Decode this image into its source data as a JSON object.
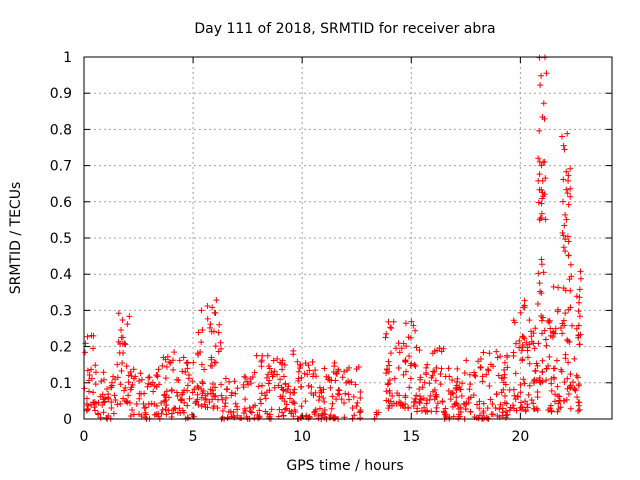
{
  "chart_data": {
    "type": "scatter",
    "title": "Day 111 of 2018, SRMTID for receiver abra",
    "xlabel": "GPS time / hours",
    "ylabel": "SRMTID / TECUs",
    "xlim": [
      0,
      24.2
    ],
    "ylim": [
      0,
      1
    ],
    "xticks": [
      0,
      5,
      10,
      15,
      20
    ],
    "xtick_labels": [
      "0",
      "5",
      "10",
      "15",
      "20"
    ],
    "yticks": [
      0,
      0.1,
      0.2,
      0.3,
      0.4,
      0.5,
      0.6,
      0.7,
      0.8,
      0.9,
      1
    ],
    "ytick_labels": [
      "0",
      "0.1",
      "0.2",
      "0.3",
      "0.4",
      "0.5",
      "0.6",
      "0.7",
      "0.8",
      "0.9",
      "1"
    ],
    "grid": true,
    "marker": "plus",
    "series": [
      {
        "name": "SRMTID",
        "color": "#ff0000",
        "segments": [
          {
            "x_start": 0.0,
            "x_end": 0.5,
            "ranges": [
              [
                0.02,
                0.26
              ]
            ]
          },
          {
            "x_start": 0.5,
            "x_end": 1.5,
            "ranges": [
              [
                0.0,
                0.16
              ]
            ]
          },
          {
            "x_start": 1.5,
            "x_end": 2.1,
            "ranges": [
              [
                0.04,
                0.3
              ]
            ]
          },
          {
            "x_start": 2.1,
            "x_end": 3.5,
            "ranges": [
              [
                0.0,
                0.14
              ]
            ]
          },
          {
            "x_start": 3.5,
            "x_end": 4.2,
            "ranges": [
              [
                0.0,
                0.2
              ]
            ]
          },
          {
            "x_start": 4.2,
            "x_end": 5.2,
            "ranges": [
              [
                0.0,
                0.18
              ]
            ]
          },
          {
            "x_start": 5.2,
            "x_end": 6.3,
            "ranges": [
              [
                0.03,
                0.33
              ]
            ]
          },
          {
            "x_start": 6.3,
            "x_end": 7.6,
            "ranges": [
              [
                0.0,
                0.12
              ]
            ]
          },
          {
            "x_start": 7.6,
            "x_end": 8.6,
            "ranges": [
              [
                0.0,
                0.18
              ]
            ]
          },
          {
            "x_start": 8.6,
            "x_end": 10.2,
            "ranges": [
              [
                0.0,
                0.2
              ]
            ]
          },
          {
            "x_start": 10.2,
            "x_end": 12.7,
            "ranges": [
              [
                0.0,
                0.16
              ]
            ]
          },
          {
            "x_start": 13.3,
            "x_end": 13.5,
            "ranges": [
              [
                0.0,
                0.02
              ]
            ]
          },
          {
            "x_start": 13.8,
            "x_end": 15.2,
            "ranges": [
              [
                0.03,
                0.27
              ]
            ]
          },
          {
            "x_start": 15.2,
            "x_end": 16.5,
            "ranges": [
              [
                0.02,
                0.22
              ]
            ]
          },
          {
            "x_start": 16.5,
            "x_end": 18.0,
            "ranges": [
              [
                0.0,
                0.18
              ]
            ]
          },
          {
            "x_start": 18.0,
            "x_end": 19.5,
            "ranges": [
              [
                0.0,
                0.2
              ]
            ]
          },
          {
            "x_start": 19.5,
            "x_end": 20.8,
            "ranges": [
              [
                0.02,
                0.33
              ]
            ]
          },
          {
            "x_start": 20.8,
            "x_end": 21.2,
            "ranges": [
              [
                0.1,
                0.45
              ],
              [
                0.55,
                1.0
              ]
            ]
          },
          {
            "x_start": 21.2,
            "x_end": 21.9,
            "ranges": [
              [
                0.02,
                0.38
              ]
            ]
          },
          {
            "x_start": 21.9,
            "x_end": 22.3,
            "ranges": [
              [
                0.05,
                0.4
              ],
              [
                0.45,
                0.82
              ]
            ]
          },
          {
            "x_start": 22.3,
            "x_end": 22.8,
            "ranges": [
              [
                0.02,
                0.44
              ]
            ]
          }
        ]
      }
    ]
  }
}
